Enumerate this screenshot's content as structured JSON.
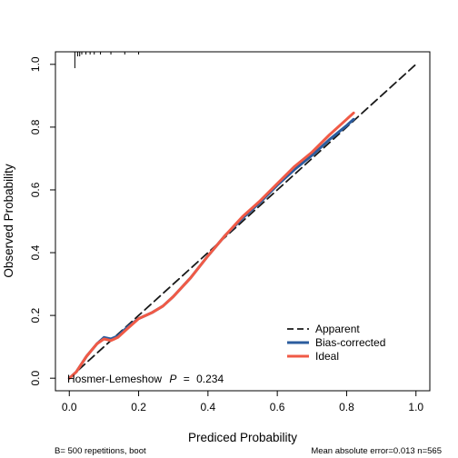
{
  "chart_data": {
    "type": "line",
    "xlabel": "Prediced Probability",
    "ylabel": "Observed Probability",
    "xlim": [
      -0.04,
      1.04
    ],
    "ylim": [
      -0.04,
      1.04
    ],
    "xticks": [
      0.0,
      0.2,
      0.4,
      0.6,
      0.8,
      1.0
    ],
    "xtick_labels": [
      "0.0",
      "0.2",
      "0.4",
      "0.6",
      "0.8",
      "1.0"
    ],
    "yticks": [
      0.0,
      0.2,
      0.4,
      0.6,
      0.8,
      1.0
    ],
    "ytick_labels": [
      "0.0",
      "0.2",
      "0.4",
      "0.6",
      "0.8",
      "1.0"
    ],
    "grid": false,
    "legend_position": "bottom-right",
    "series": [
      {
        "name": "Apparent",
        "color": "#1a1a1a",
        "dash": "dashed",
        "x": [
          0.0,
          0.1,
          0.2,
          0.3,
          0.4,
          0.5,
          0.6,
          0.7,
          0.8,
          1.0
        ],
        "y": [
          0.0,
          0.1,
          0.2,
          0.3,
          0.4,
          0.5,
          0.6,
          0.7,
          0.8,
          1.0
        ]
      },
      {
        "name": "Bias-corrected",
        "color": "#2b5c9e",
        "dash": "solid",
        "x": [
          0.0,
          0.02,
          0.05,
          0.08,
          0.1,
          0.12,
          0.14,
          0.17,
          0.2,
          0.24,
          0.27,
          0.3,
          0.35,
          0.4,
          0.45,
          0.5,
          0.55,
          0.6,
          0.65,
          0.7,
          0.75,
          0.8,
          0.82
        ],
        "y": [
          0.0,
          0.02,
          0.07,
          0.11,
          0.13,
          0.125,
          0.135,
          0.165,
          0.19,
          0.21,
          0.23,
          0.26,
          0.32,
          0.39,
          0.455,
          0.51,
          0.56,
          0.615,
          0.665,
          0.71,
          0.76,
          0.805,
          0.825
        ]
      },
      {
        "name": "Ideal",
        "color": "#f05a46",
        "dash": "solid",
        "x": [
          0.0,
          0.02,
          0.05,
          0.08,
          0.1,
          0.12,
          0.14,
          0.17,
          0.2,
          0.24,
          0.27,
          0.3,
          0.35,
          0.4,
          0.45,
          0.5,
          0.55,
          0.6,
          0.65,
          0.7,
          0.75,
          0.8,
          0.82
        ],
        "y": [
          0.0,
          0.02,
          0.07,
          0.11,
          0.125,
          0.12,
          0.13,
          0.16,
          0.19,
          0.21,
          0.23,
          0.26,
          0.32,
          0.39,
          0.455,
          0.515,
          0.565,
          0.62,
          0.675,
          0.72,
          0.775,
          0.825,
          0.845
        ]
      }
    ],
    "annotation": {
      "prefix": "Hosmer-Lemeshow",
      "stat": "P",
      "sep": "=",
      "value": "0.234"
    },
    "rug_x": [
      0.016,
      0.024,
      0.03,
      0.036,
      0.048,
      0.06,
      0.072,
      0.09,
      0.12,
      0.16,
      0.2
    ],
    "footer_left": "B= 500 repetitions, boot",
    "footer_right": "Mean absolute error=0.013 n=565"
  }
}
